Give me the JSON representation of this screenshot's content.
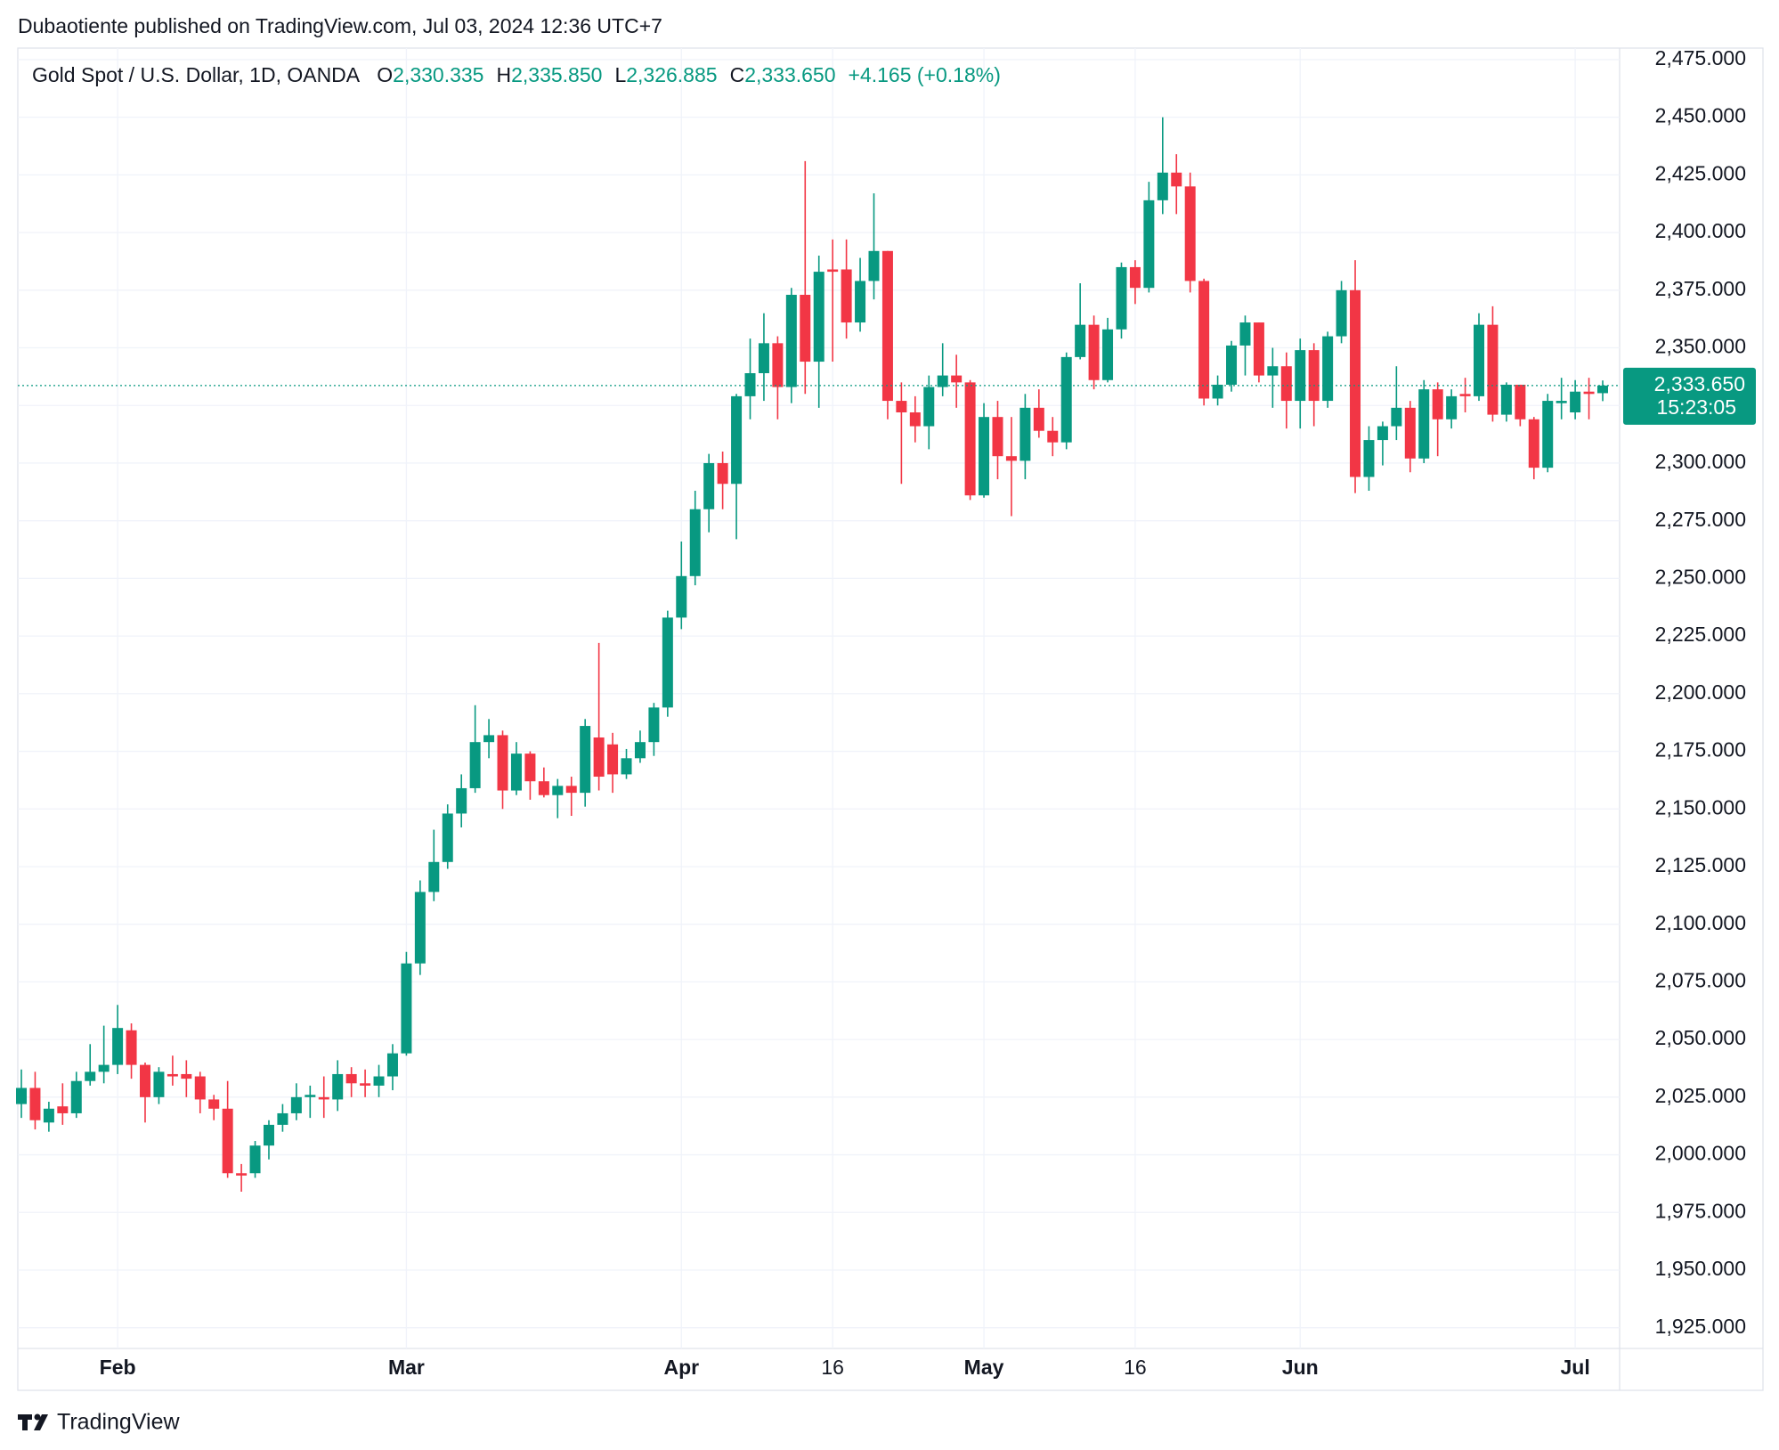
{
  "header": {
    "text": "Dubaotiente published on TradingView.com, Jul 03, 2024 12:36 UTC+7"
  },
  "footer": {
    "brand": "TradingView"
  },
  "chart_data": {
    "type": "candlestick",
    "title": "Gold Spot / U.S. Dollar, 1D, OANDA",
    "ohlc_legend": [
      {
        "key": "O",
        "value": "2,330.335"
      },
      {
        "key": "H",
        "value": "2,335.850"
      },
      {
        "key": "L",
        "value": "2,326.885"
      },
      {
        "key": "C",
        "value": "2,333.650"
      }
    ],
    "change_label": "+4.165 (+0.18%)",
    "last_price_label": "2,333.650",
    "countdown": "15:23:05",
    "up_color": "#089981",
    "down_color": "#f23645",
    "grid": true,
    "categories": [
      null,
      null,
      null,
      null,
      null,
      null,
      null,
      "Feb",
      null,
      null,
      null,
      null,
      null,
      null,
      null,
      null,
      null,
      null,
      null,
      null,
      null,
      null,
      null,
      null,
      null,
      null,
      null,
      null,
      "Mar",
      null,
      null,
      null,
      null,
      null,
      null,
      null,
      null,
      null,
      null,
      null,
      null,
      null,
      null,
      null,
      null,
      null,
      null,
      null,
      "Apr",
      null,
      null,
      null,
      null,
      null,
      null,
      null,
      null,
      null,
      null,
      "16",
      null,
      null,
      null,
      null,
      null,
      null,
      null,
      null,
      null,
      null,
      "May",
      null,
      null,
      null,
      null,
      null,
      null,
      null,
      null,
      null,
      null,
      "16",
      null,
      null,
      null,
      null,
      null,
      null,
      null,
      null,
      null,
      null,
      null,
      "Jun",
      null,
      null,
      null,
      null,
      null,
      null,
      null,
      null,
      null,
      null,
      null,
      null,
      null,
      null,
      null,
      null,
      null,
      null,
      null,
      "Jul",
      null,
      null
    ],
    "open": [
      2022,
      2029,
      2014,
      2021,
      2018,
      2032,
      2036,
      2039,
      2054,
      2039,
      2025,
      2035,
      2035,
      2034,
      2024,
      2020,
      1992,
      1992,
      2004,
      2013,
      2018,
      2025,
      2025,
      2024,
      2035,
      2031,
      2030,
      2034,
      2044,
      2083,
      2114,
      2127,
      2148,
      2159,
      2179,
      2182,
      2158,
      2174,
      2162,
      2156,
      2160,
      2157,
      2181,
      2178,
      2165,
      2172,
      2179,
      2194,
      2233,
      2251,
      2280,
      2300,
      2291,
      2329,
      2339,
      2352,
      2333,
      2373,
      2344,
      2384,
      2384,
      2361,
      2379,
      2392,
      2327,
      2322,
      2316,
      2333,
      2338,
      2335,
      2286,
      2320,
      2303,
      2301,
      2324,
      2314,
      2309,
      2346,
      2360,
      2336,
      2358,
      2385,
      2376,
      2414,
      2426,
      2420,
      2379,
      2328,
      2334,
      2351,
      2361,
      2338,
      2342,
      2327,
      2349,
      2327,
      2355,
      2375,
      2294,
      2310,
      2316,
      2324,
      2302,
      2332,
      2319,
      2330,
      2329,
      2360,
      2321,
      2334,
      2319,
      2298,
      2326,
      2322,
      2331,
      2330.335
    ],
    "high": [
      2037,
      2036,
      2023,
      2031,
      2036,
      2048,
      2056,
      2065,
      2057,
      2040,
      2038,
      2043,
      2041,
      2036,
      2026,
      2032,
      1996,
      2006,
      2015,
      2022,
      2031,
      2030,
      2034,
      2041,
      2038,
      2037,
      2039,
      2048,
      2088,
      2119,
      2141,
      2152,
      2165,
      2195,
      2189,
      2184,
      2179,
      2175,
      2168,
      2163,
      2164,
      2189,
      2222,
      2183,
      2176,
      2184,
      2196,
      2236,
      2266,
      2288,
      2304,
      2305,
      2330,
      2354,
      2365,
      2355,
      2376,
      2431,
      2390,
      2397,
      2397,
      2389,
      2417,
      2392,
      2335,
      2329,
      2338,
      2352,
      2347,
      2336,
      2326,
      2327,
      2320,
      2330,
      2332,
      2320,
      2348,
      2378,
      2364,
      2363,
      2387,
      2388,
      2422,
      2450,
      2434,
      2426,
      2380,
      2338,
      2353,
      2364,
      2361,
      2350,
      2348,
      2354,
      2352,
      2357,
      2379,
      2388,
      2316,
      2318,
      2342,
      2327,
      2336,
      2335,
      2332,
      2337,
      2365,
      2368,
      2335,
      2334,
      2320,
      2330,
      2337,
      2336,
      2337,
      2335.85
    ],
    "low": [
      2016,
      2011,
      2010,
      2013,
      2016,
      2030,
      2031,
      2035,
      2033,
      2014,
      2022,
      2030,
      2025,
      2018,
      2015,
      1990,
      1984,
      1990,
      1998,
      2010,
      2015,
      2016,
      2016,
      2019,
      2025,
      2025,
      2025,
      2028,
      2043,
      2078,
      2110,
      2124,
      2142,
      2157,
      2172,
      2150,
      2156,
      2154,
      2155,
      2146,
      2147,
      2151,
      2158,
      2157,
      2163,
      2170,
      2173,
      2190,
      2228,
      2247,
      2270,
      2280,
      2267,
      2319,
      2327,
      2319,
      2326,
      2330,
      2324,
      2344,
      2354,
      2357,
      2371,
      2319,
      2291,
      2309,
      2306,
      2329,
      2324,
      2284,
      2285,
      2293,
      2277,
      2293,
      2311,
      2303,
      2306,
      2345,
      2332,
      2335,
      2354,
      2369,
      2374,
      2408,
      2408,
      2374,
      2325,
      2325,
      2331,
      2338,
      2335,
      2324,
      2315,
      2315,
      2316,
      2324,
      2352,
      2287,
      2288,
      2299,
      2310,
      2296,
      2300,
      2303,
      2315,
      2322,
      2327,
      2318,
      2318,
      2316,
      2293,
      2296,
      2319,
      2319,
      2319,
      2326.885
    ],
    "close": [
      2029,
      2015,
      2020,
      2018,
      2032,
      2036,
      2039,
      2055,
      2039,
      2025,
      2036,
      2034,
      2033,
      2024,
      2020,
      1992,
      1991,
      2004,
      2013,
      2018,
      2025,
      2026,
      2024,
      2035,
      2031,
      2030,
      2034,
      2044,
      2083,
      2114,
      2127,
      2148,
      2159,
      2179,
      2182,
      2158,
      2174,
      2162,
      2156,
      2160,
      2157,
      2186,
      2164,
      2165,
      2172,
      2179,
      2194,
      2233,
      2251,
      2280,
      2300,
      2291,
      2329,
      2339,
      2352,
      2333,
      2373,
      2344,
      2383,
      2383,
      2361,
      2379,
      2392,
      2327,
      2322,
      2316,
      2333,
      2338,
      2335,
      2286,
      2320,
      2303,
      2301,
      2324,
      2314,
      2309,
      2346,
      2360,
      2336,
      2358,
      2385,
      2376,
      2414,
      2426,
      2420,
      2379,
      2328,
      2334,
      2351,
      2361,
      2338,
      2342,
      2327,
      2349,
      2327,
      2355,
      2375,
      2294,
      2310,
      2316,
      2324,
      2302,
      2332,
      2319,
      2329,
      2329,
      2360,
      2321,
      2334,
      2319,
      2298,
      2327,
      2327,
      2331,
      2330,
      2333.65
    ],
    "ylim": [
      1916,
      2480
    ],
    "yticks": [
      {
        "value": 1925,
        "label": "1,925.000"
      },
      {
        "value": 1950,
        "label": "1,950.000"
      },
      {
        "value": 1975,
        "label": "1,975.000"
      },
      {
        "value": 2000,
        "label": "2,000.000"
      },
      {
        "value": 2025,
        "label": "2,025.000"
      },
      {
        "value": 2050,
        "label": "2,050.000"
      },
      {
        "value": 2075,
        "label": "2,075.000"
      },
      {
        "value": 2100,
        "label": "2,100.000"
      },
      {
        "value": 2125,
        "label": "2,125.000"
      },
      {
        "value": 2150,
        "label": "2,150.000"
      },
      {
        "value": 2175,
        "label": "2,175.000"
      },
      {
        "value": 2200,
        "label": "2,200.000"
      },
      {
        "value": 2225,
        "label": "2,225.000"
      },
      {
        "value": 2250,
        "label": "2,250.000"
      },
      {
        "value": 2275,
        "label": "2,275.000"
      },
      {
        "value": 2300,
        "label": "2,300.000"
      },
      {
        "value": 2325,
        "label": "2,325.000"
      },
      {
        "value": 2350,
        "label": "2,350.000"
      },
      {
        "value": 2375,
        "label": "2,375.000"
      },
      {
        "value": 2400,
        "label": "2,400.000"
      },
      {
        "value": 2425,
        "label": "2,425.000"
      },
      {
        "value": 2450,
        "label": "2,450.000"
      },
      {
        "value": 2475,
        "label": "2,475.000"
      }
    ]
  }
}
